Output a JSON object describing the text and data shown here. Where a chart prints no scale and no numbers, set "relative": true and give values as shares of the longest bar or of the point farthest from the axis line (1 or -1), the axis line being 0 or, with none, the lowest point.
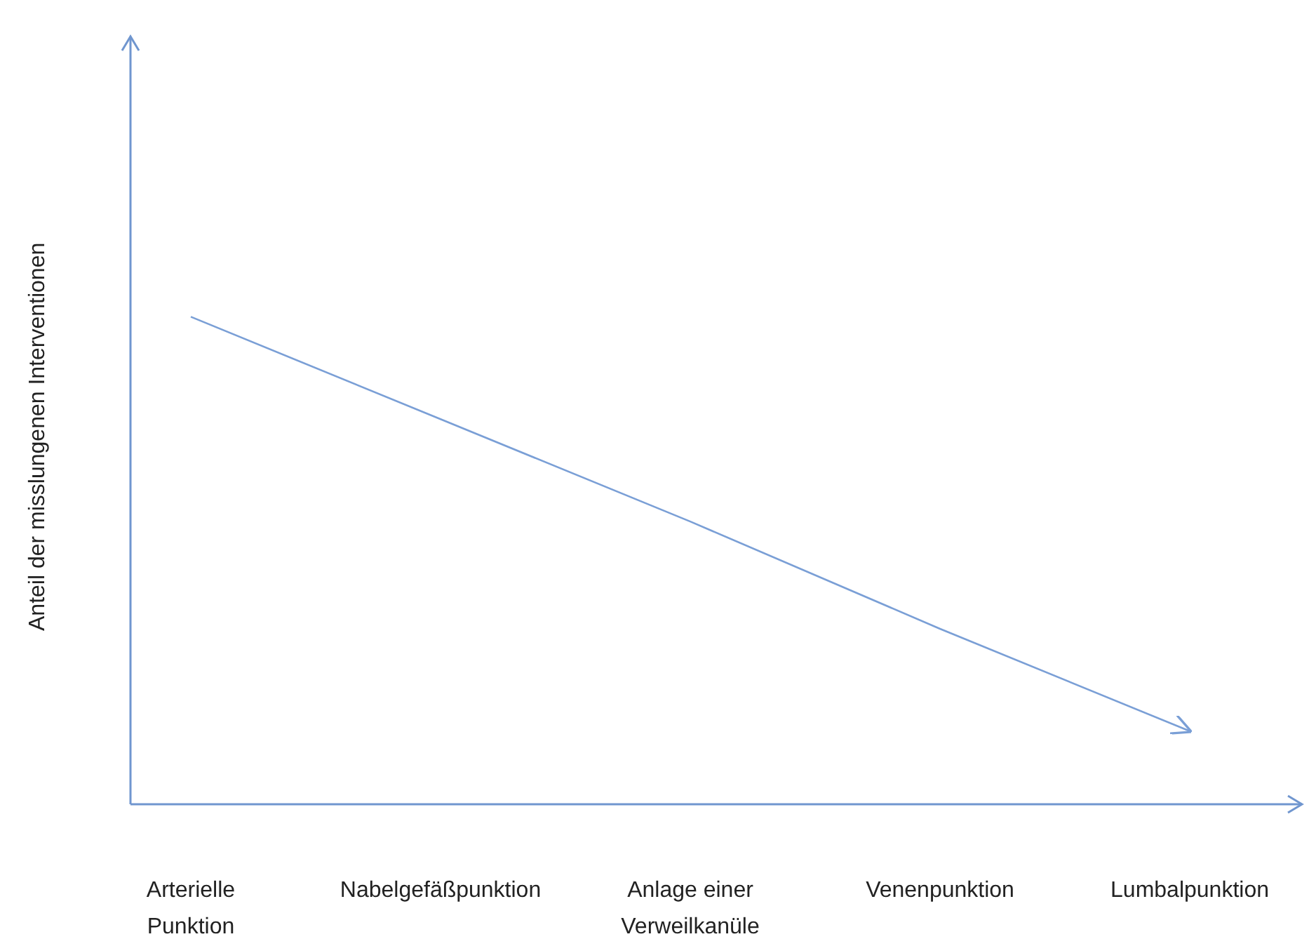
{
  "chart_data": {
    "type": "line",
    "relative": true,
    "ylabel": "Anteil der misslungenen Interventionen",
    "categories": [
      "Arterielle Punktion",
      "Nabelgefäßpunktion",
      "Anlage einer Verweilkanüle",
      "Venenpunktion",
      "Lumbalpunktion"
    ],
    "series": [
      {
        "color": "#7a9fd6",
        "values": [
          1,
          0.79,
          0.58,
          0.36,
          0.15
        ]
      }
    ],
    "marker": "none",
    "line_style": "solid"
  }
}
